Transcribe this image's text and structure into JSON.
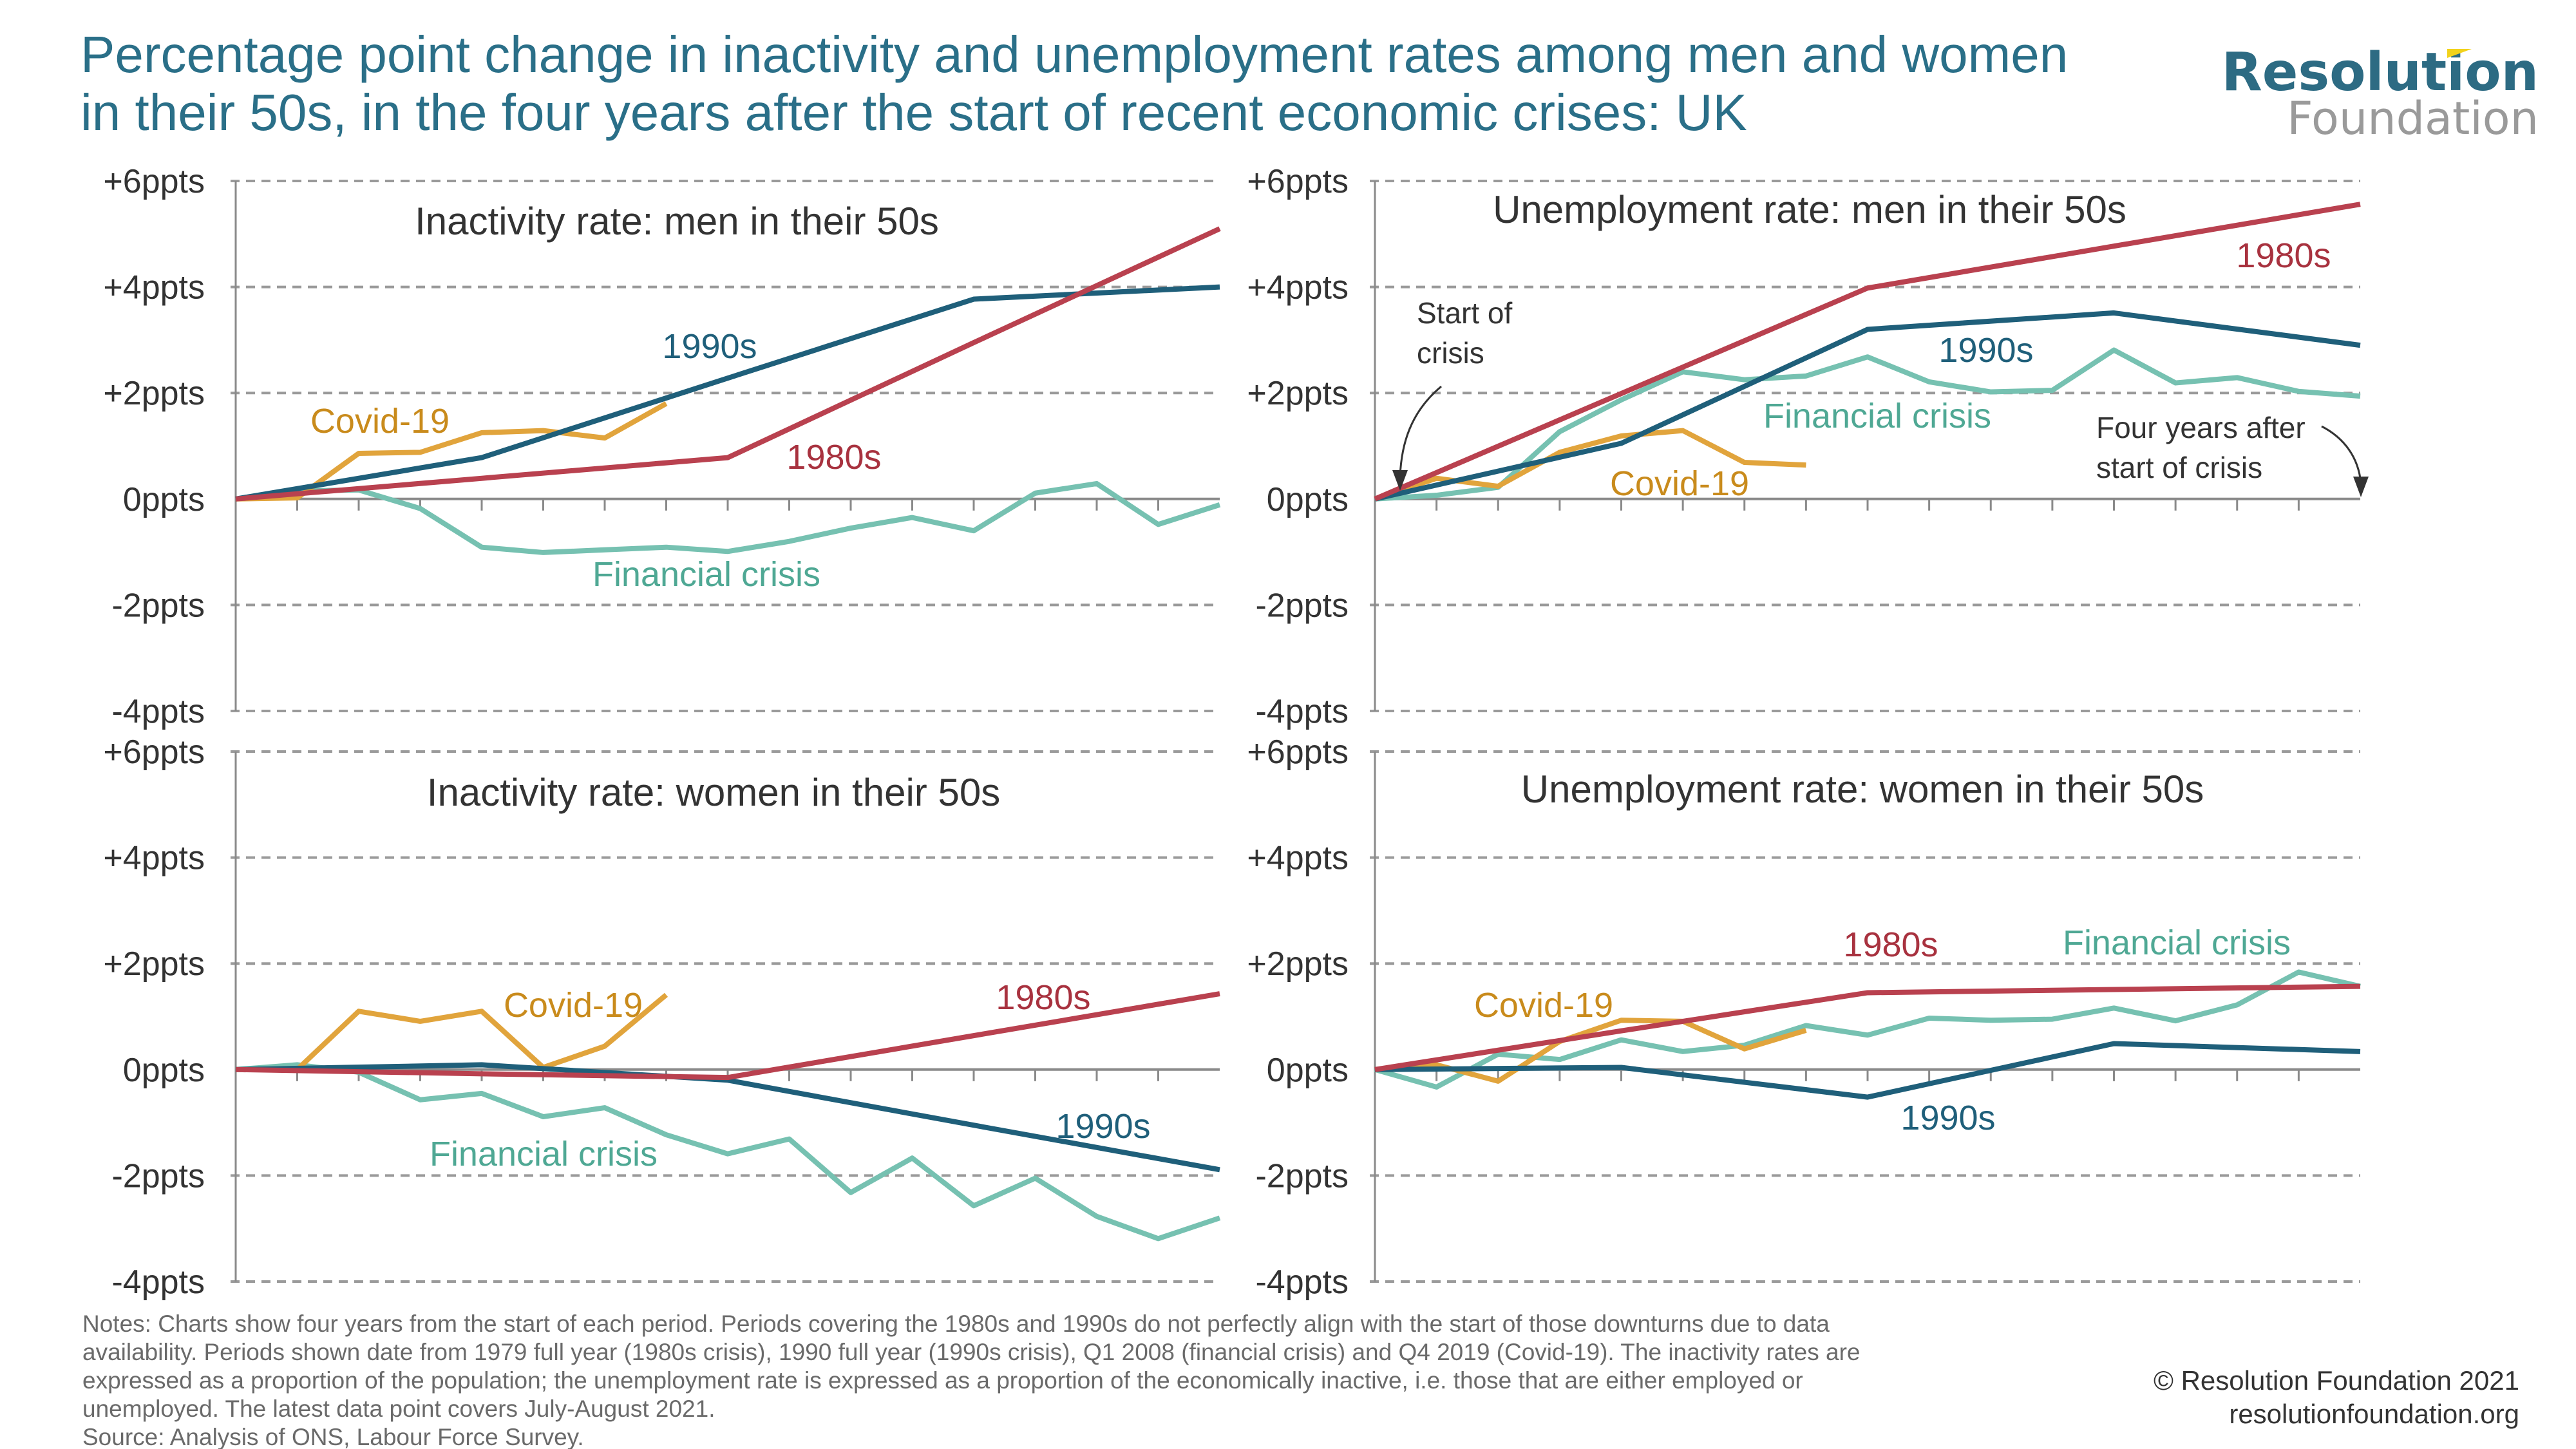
{
  "title": {
    "lines": [
      "Percentage point change in inactivity and unemployment rates among men and women",
      "in their 50s, in the four years after the start of recent economic crises: UK"
    ]
  },
  "logo": {
    "main": "Resolution",
    "sub": "Foundation",
    "accent": "#f2d21b"
  },
  "colors": {
    "1980s": "#b9414f",
    "1990s": "#1f5f7a",
    "Financial crisis": "#76c1b1",
    "Covid-19": "#e1a43c",
    "label_1980s": "#a8323f",
    "label_1990s": "#1f5f7a",
    "label_Financial crisis": "#4fa894",
    "label_Covid-19": "#c98b1c",
    "grid": "#9a9a9a",
    "axis": "#8a8a8a"
  },
  "chart_data": [
    {
      "type": "line",
      "title": "Inactivity rate: men in their 50s",
      "ylim": [
        -4,
        6
      ],
      "yticks": [
        6,
        4,
        2,
        0,
        -2,
        -4
      ],
      "ytick_labels": [
        "+6ppts",
        "+4ppts",
        "+2ppts",
        "0ppts",
        "-2ppts",
        "-4ppts"
      ],
      "grid": true,
      "series": [
        {
          "name": "1980s",
          "x": [
            0,
            4,
            8,
            12,
            16
          ],
          "values": [
            0,
            0.39,
            0.78,
            2.95,
            5.1
          ]
        },
        {
          "name": "1990s",
          "x": [
            0,
            4,
            8,
            12,
            16
          ],
          "values": [
            0,
            0.78,
            2.28,
            3.77,
            4.0
          ]
        },
        {
          "name": "Financial crisis",
          "x": [
            0,
            1,
            2,
            3,
            4,
            5,
            6,
            7,
            8,
            9,
            10,
            11,
            12,
            13,
            14,
            15,
            16
          ],
          "values": [
            0,
            0.15,
            0.17,
            -0.18,
            -0.91,
            -1.01,
            -0.96,
            -0.91,
            -0.99,
            -0.8,
            -0.55,
            -0.35,
            -0.6,
            0.11,
            0.29,
            -0.48,
            -0.11
          ]
        },
        {
          "name": "Covid-19",
          "x": [
            0,
            1,
            2,
            3,
            4,
            5,
            6,
            7
          ],
          "values": [
            0,
            0.02,
            0.86,
            0.88,
            1.25,
            1.29,
            1.15,
            1.8
          ]
        }
      ]
    },
    {
      "type": "line",
      "title": "Unemployment rate: men in their 50s",
      "ylim": [
        -4,
        6
      ],
      "yticks": [
        6,
        4,
        2,
        0,
        -2,
        -4
      ],
      "ytick_labels": [
        "+6ppts",
        "+4ppts",
        "+2ppts",
        "0ppts",
        "-2ppts",
        "-4ppts"
      ],
      "grid": true,
      "annotations": [
        {
          "lines": [
            "Start of",
            "crisis"
          ]
        },
        {
          "lines": [
            "Four years after",
            "start of crisis"
          ]
        }
      ],
      "series": [
        {
          "name": "1980s",
          "x": [
            0,
            4,
            8,
            12,
            16
          ],
          "values": [
            0,
            1.99,
            3.98,
            4.77,
            5.56
          ]
        },
        {
          "name": "1990s",
          "x": [
            0,
            4,
            8,
            12,
            16
          ],
          "values": [
            0,
            1.05,
            3.2,
            3.51,
            2.9
          ]
        },
        {
          "name": "Financial crisis",
          "x": [
            0,
            1,
            2,
            3,
            4,
            5,
            6,
            7,
            8,
            9,
            10,
            11,
            12,
            13,
            14,
            15,
            16
          ],
          "values": [
            0,
            0.07,
            0.22,
            1.27,
            1.87,
            2.4,
            2.25,
            2.32,
            2.68,
            2.21,
            2.02,
            2.05,
            2.81,
            2.19,
            2.29,
            2.03,
            1.94
          ]
        },
        {
          "name": "Covid-19",
          "x": [
            0,
            1,
            2,
            3,
            4,
            5,
            6,
            7
          ],
          "values": [
            0,
            0.39,
            0.24,
            0.88,
            1.19,
            1.29,
            0.69,
            0.64
          ]
        }
      ]
    },
    {
      "type": "line",
      "title": "Inactivity rate: women in their 50s",
      "ylim": [
        -4,
        6
      ],
      "yticks": [
        6,
        4,
        2,
        0,
        -2,
        -4
      ],
      "ytick_labels": [
        "+6ppts",
        "+4ppts",
        "+2ppts",
        "0ppts",
        "-2ppts",
        "-4ppts"
      ],
      "grid": true,
      "series": [
        {
          "name": "1980s",
          "x": [
            0,
            4,
            8,
            12,
            16
          ],
          "values": [
            0,
            -0.08,
            -0.15,
            0.64,
            1.43
          ]
        },
        {
          "name": "1990s",
          "x": [
            0,
            4,
            8,
            12,
            16
          ],
          "values": [
            0,
            0.09,
            -0.2,
            -1.05,
            -1.89
          ]
        },
        {
          "name": "Financial crisis",
          "x": [
            0,
            1,
            2,
            3,
            4,
            5,
            6,
            7,
            8,
            9,
            10,
            11,
            12,
            13,
            14,
            15,
            16
          ],
          "values": [
            0,
            0.09,
            -0.05,
            -0.57,
            -0.45,
            -0.89,
            -0.72,
            -1.23,
            -1.59,
            -1.31,
            -2.32,
            -1.67,
            -2.57,
            -2.05,
            -2.77,
            -3.19,
            -2.8
          ]
        },
        {
          "name": "Covid-19",
          "x": [
            0,
            1,
            2,
            3,
            4,
            5,
            6,
            7
          ],
          "values": [
            0,
            0,
            1.1,
            0.91,
            1.1,
            0.04,
            0.44,
            1.41
          ]
        }
      ]
    },
    {
      "type": "line",
      "title": "Unemployment rate: women in their 50s",
      "ylim": [
        -4,
        6
      ],
      "yticks": [
        6,
        4,
        2,
        0,
        -2,
        -4
      ],
      "ytick_labels": [
        "+6ppts",
        "+4ppts",
        "+2ppts",
        "0ppts",
        "-2ppts",
        "-4ppts"
      ],
      "grid": true,
      "series": [
        {
          "name": "1980s",
          "x": [
            0,
            4,
            8,
            12,
            16
          ],
          "values": [
            0,
            0.73,
            1.45,
            1.51,
            1.57
          ]
        },
        {
          "name": "1990s",
          "x": [
            0,
            4,
            8,
            12,
            16
          ],
          "values": [
            0,
            0.04,
            -0.52,
            0.49,
            0.34
          ]
        },
        {
          "name": "Financial crisis",
          "x": [
            0,
            1,
            2,
            3,
            4,
            5,
            6,
            7,
            8,
            9,
            10,
            11,
            12,
            13,
            14,
            15,
            16
          ],
          "values": [
            0,
            -0.33,
            0.29,
            0.19,
            0.56,
            0.34,
            0.46,
            0.83,
            0.65,
            0.97,
            0.93,
            0.95,
            1.16,
            0.92,
            1.22,
            1.84,
            1.57
          ]
        },
        {
          "name": "Covid-19",
          "x": [
            0,
            1,
            2,
            3,
            4,
            5,
            6,
            7
          ],
          "values": [
            0,
            0.09,
            -0.22,
            0.53,
            0.93,
            0.91,
            0.39,
            0.74
          ]
        }
      ]
    }
  ],
  "notes": [
    "Notes: Charts show four years from the start of each period. Periods covering the 1980s and 1990s do not perfectly align with the start of those downturns due to data",
    "availability. Periods shown date from 1979 full year (1980s crisis), 1990 full year (1990s crisis), Q1 2008 (financial crisis) and Q4 2019 (Covid-19). The inactivity rates are",
    "expressed as a proportion of the population; the unemployment rate is expressed as a proportion of the economically inactive, i.e. those that are either employed or",
    "unemployed. The latest data point covers July-August 2021.",
    "Source: Analysis of ONS, Labour Force Survey."
  ],
  "credit": {
    "copyright": "© Resolution Foundation 2021",
    "website": "resolutionfoundation.org"
  }
}
